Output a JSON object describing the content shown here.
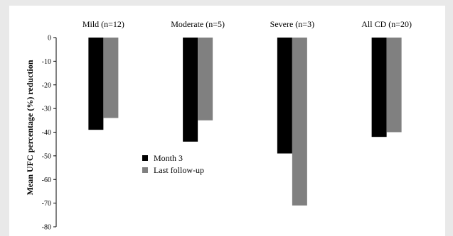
{
  "chart_data": {
    "type": "bar",
    "categories": [
      "Mild (n=12)",
      "Moderate (n=5)",
      "Severe (n=3)",
      "All CD (n=20)"
    ],
    "series": [
      {
        "name": "Month 3",
        "color": "#000000",
        "values": [
          -39,
          -44,
          -49,
          -42
        ]
      },
      {
        "name": "Last follow-up",
        "color": "#808080",
        "values": [
          -34,
          -35,
          -71,
          -40
        ]
      }
    ],
    "title": "",
    "xlabel": "",
    "ylabel": "Mean UFC percentage (%)  reduction",
    "ylim": [
      -80,
      0
    ],
    "yticks": [
      0,
      -10,
      -20,
      -30,
      -40,
      -50,
      -60,
      -70,
      -80
    ],
    "category_labels_position": "top",
    "legend_position": "center-left",
    "grid": false
  }
}
